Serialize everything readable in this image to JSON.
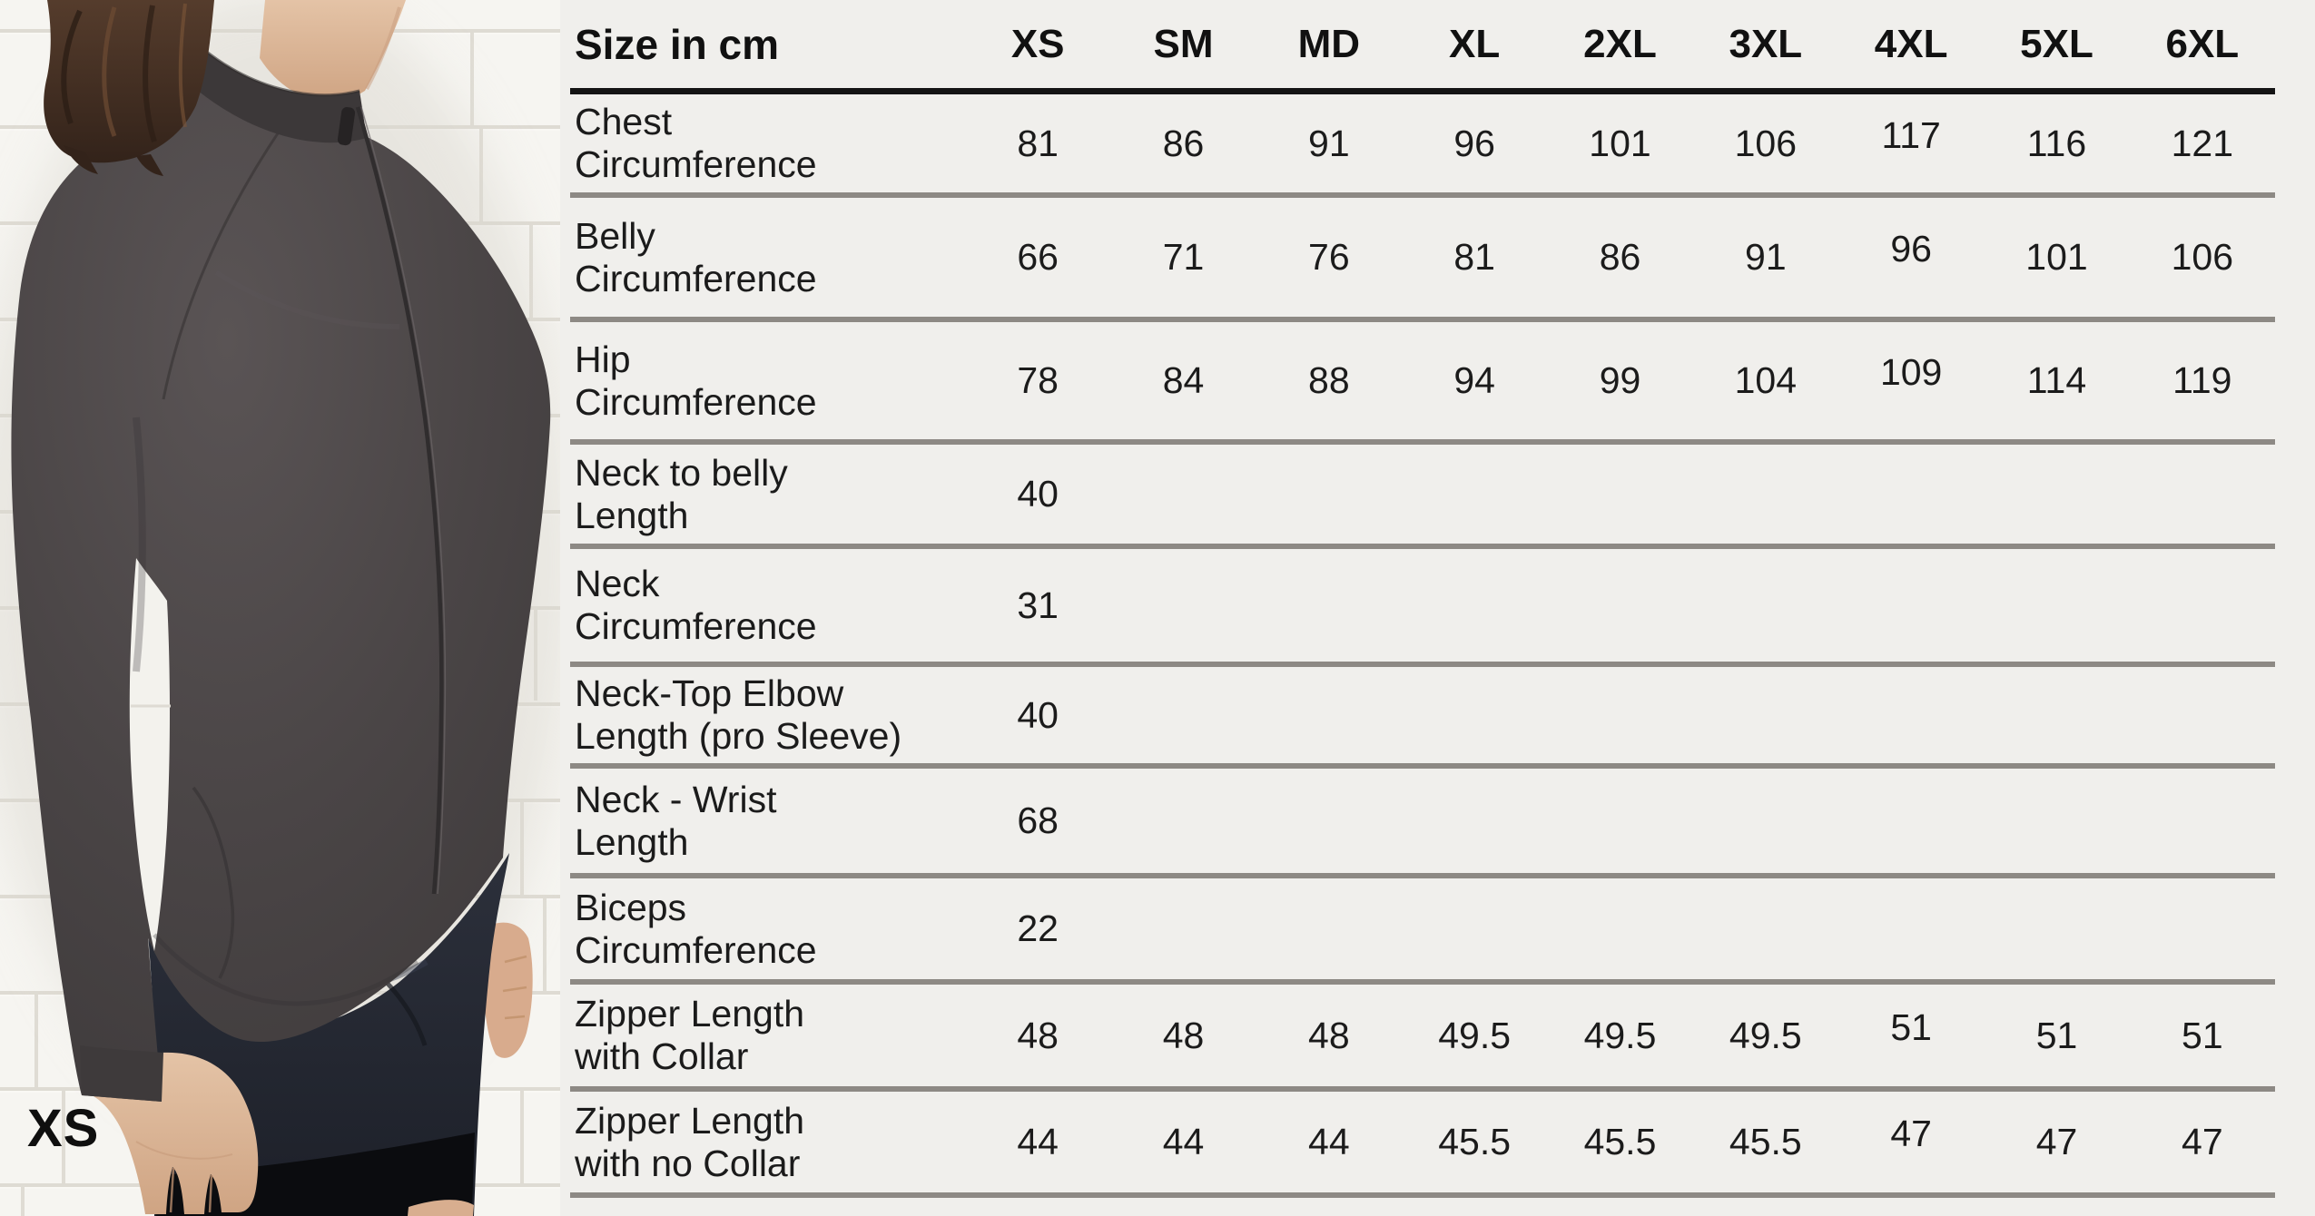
{
  "photo": {
    "size_label": "XS"
  },
  "table": {
    "header": {
      "size_in_cm": "Size in cm",
      "sizes": [
        "XS",
        "SM",
        "MD",
        "XL",
        "2XL",
        "3XL",
        "4XL",
        "5XL",
        "6XL"
      ]
    },
    "rows": [
      {
        "label": "Chest Circumference",
        "label_lines": [
          "Chest",
          "Circumference"
        ],
        "values": [
          "81",
          "86",
          "91",
          "96",
          "101",
          "106",
          "117",
          "116",
          "121"
        ]
      },
      {
        "label": "Belly Circumference",
        "label_lines": [
          "Belly",
          "Circumference"
        ],
        "values": [
          "66",
          "71",
          "76",
          "81",
          "86",
          "91",
          "96",
          "101",
          "106"
        ]
      },
      {
        "label": "Hip Circumference",
        "label_lines": [
          "Hip",
          "Circumference"
        ],
        "values": [
          "78",
          "84",
          "88",
          "94",
          "99",
          "104",
          "109",
          "114",
          "119"
        ]
      },
      {
        "label": "Neck to belly Length",
        "label_lines": [
          "Neck to belly",
          "Length"
        ],
        "values": [
          "40",
          "",
          "",
          "",
          "",
          "",
          "",
          "",
          ""
        ]
      },
      {
        "label": "Neck Circumference",
        "label_lines": [
          "Neck",
          "Circumference"
        ],
        "values": [
          "31",
          "",
          "",
          "",
          "",
          "",
          "",
          "",
          ""
        ]
      },
      {
        "label": "Neck-Top Elbow Length (pro Sleeve)",
        "label_lines": [
          "Neck-Top Elbow",
          "Length (pro Sleeve)"
        ],
        "values": [
          "40",
          "",
          "",
          "",
          "",
          "",
          "",
          "",
          ""
        ]
      },
      {
        "label": "Neck - Wrist Length",
        "label_lines": [
          "Neck - Wrist",
          "Length"
        ],
        "values": [
          "68",
          "",
          "",
          "",
          "",
          "",
          "",
          "",
          ""
        ]
      },
      {
        "label": "Biceps Circumference",
        "label_lines": [
          "Biceps",
          "Circumference"
        ],
        "values": [
          "22",
          "",
          "",
          "",
          "",
          "",
          "",
          "",
          ""
        ]
      },
      {
        "label": "Zipper Length with Collar",
        "label_lines": [
          "Zipper Length",
          "with Collar"
        ],
        "values": [
          "48",
          "48",
          "48",
          "49.5",
          "49.5",
          "49.5",
          "51",
          "51",
          "51"
        ]
      },
      {
        "label": "Zipper Length with no Collar",
        "label_lines": [
          "Zipper Length",
          "with no Collar"
        ],
        "values": [
          "44",
          "44",
          "44",
          "45.5",
          "45.5",
          "45.5",
          "47",
          "47",
          "47"
        ]
      }
    ]
  },
  "colors": {
    "background": "#f0efec",
    "separator": "#8d8984",
    "header_rule": "#141414",
    "text": "#1b1b1b",
    "photo_label": "#0f0f0f",
    "jersey": "#4a4546",
    "shorts": "#242833",
    "wall": "#f6f5f1"
  }
}
